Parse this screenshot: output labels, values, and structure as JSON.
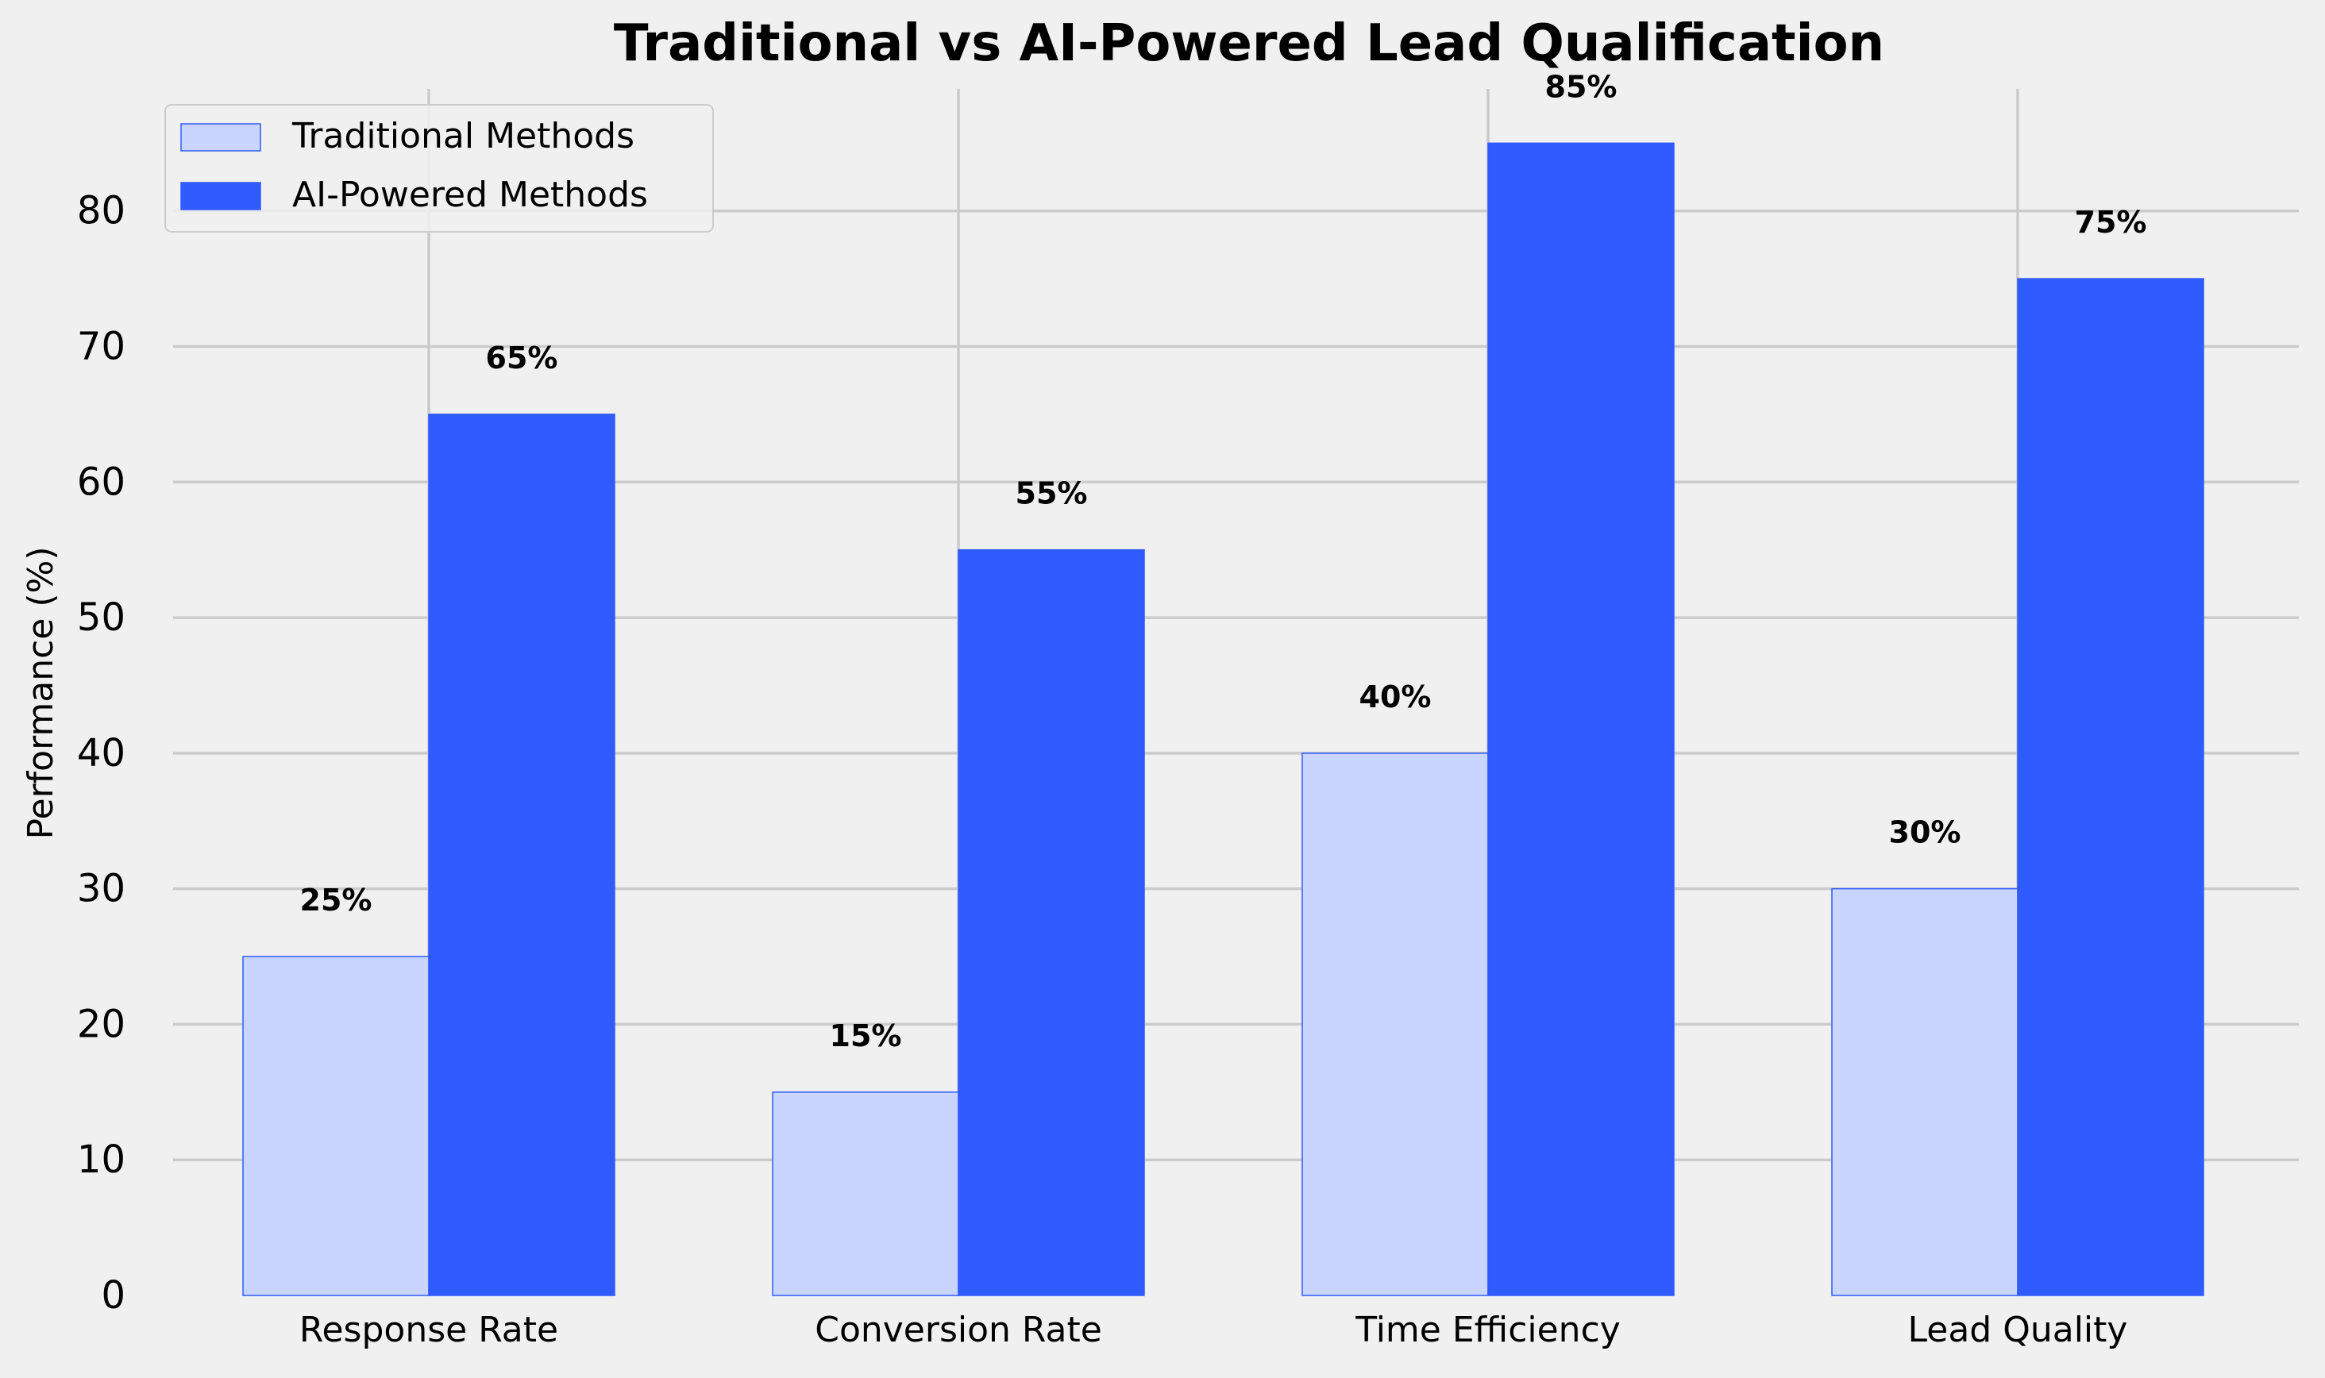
{
  "chart_data": {
    "type": "bar",
    "title": "Traditional vs AI-Powered Lead Qualification",
    "xlabel": "",
    "ylabel": "Performance (%)",
    "categories": [
      "Response Rate",
      "Conversion Rate",
      "Time Efficiency",
      "Lead Quality"
    ],
    "series": [
      {
        "name": "Traditional Methods",
        "values": [
          25,
          15,
          40,
          30
        ],
        "color": "#c9d5ff",
        "edge_color": "#2f5bff"
      },
      {
        "name": "AI-Powered Methods",
        "values": [
          65,
          55,
          85,
          75
        ],
        "color": "#2f5bff",
        "edge_color": "#2f5bff"
      }
    ],
    "value_label_suffix": "%",
    "ylim": [
      0,
      89
    ],
    "yticks": [
      0,
      10,
      20,
      30,
      40,
      50,
      60,
      70,
      80
    ],
    "grid": true,
    "legend_position": "top-left",
    "colors": {
      "background": "#f0f0f0",
      "grid": "#cbcbcb"
    }
  }
}
